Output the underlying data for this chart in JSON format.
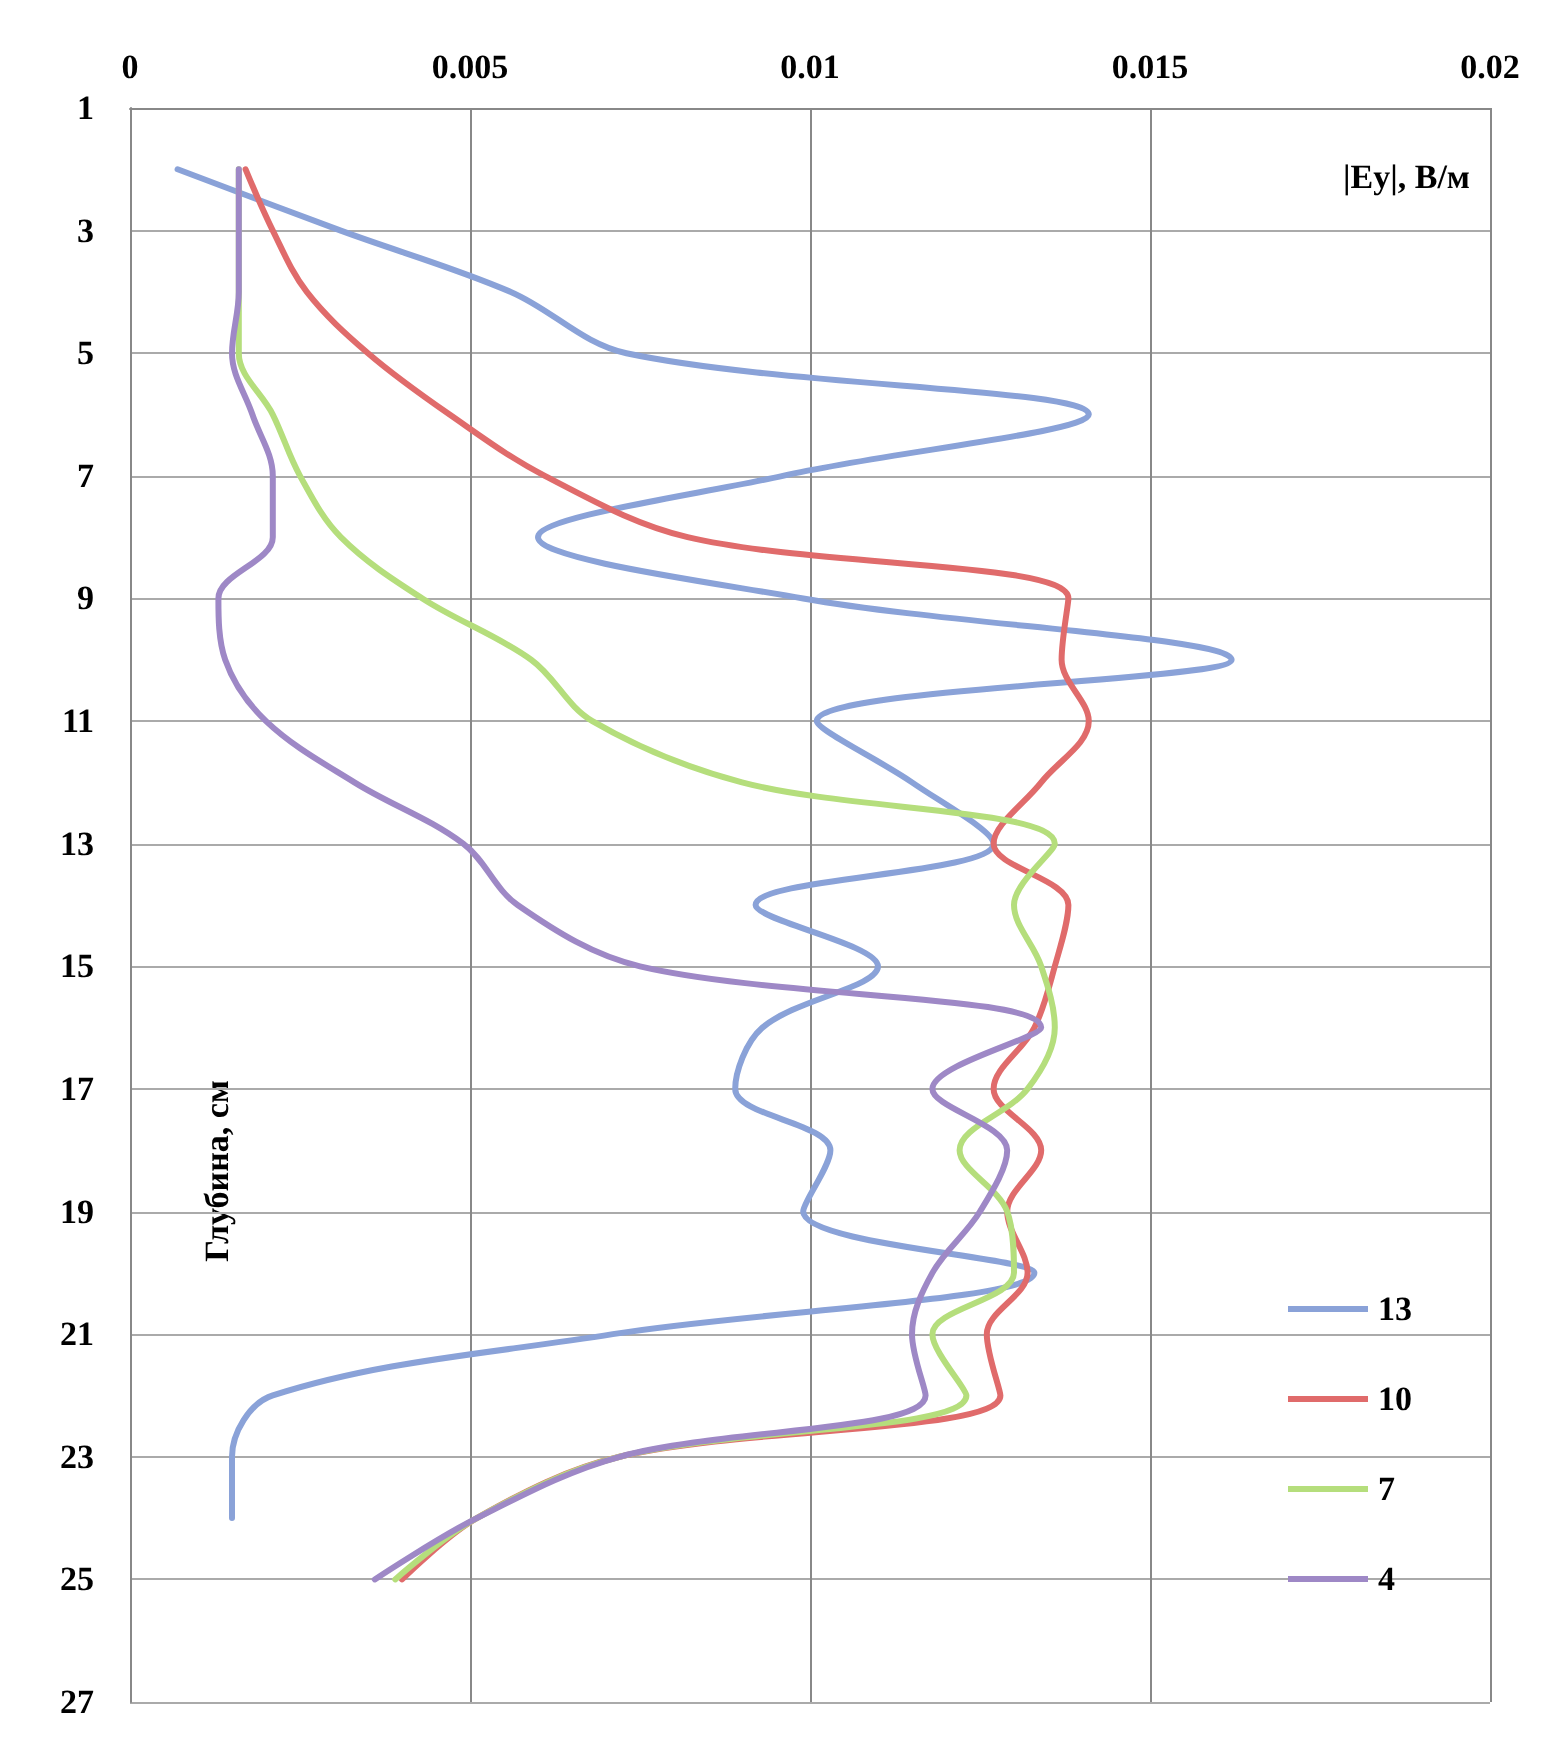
{
  "chart_data": {
    "type": "line",
    "xlabel": "|Ey|, В/м",
    "ylabel": "Глубина, см",
    "xlim": [
      0,
      0.02
    ],
    "xticks": [
      0,
      0.005,
      0.01,
      0.015,
      0.02
    ],
    "ylim": [
      27,
      1
    ],
    "yticks": [
      1,
      3,
      5,
      7,
      9,
      11,
      13,
      15,
      17,
      19,
      21,
      23,
      25,
      27
    ],
    "grid": true,
    "legend": "bottom right",
    "marker": "none",
    "line_style": "solid",
    "series": [
      {
        "name": "13",
        "color": "#8aa2d8",
        "x": [
          0.0007,
          0.0031,
          0.0056,
          0.0073,
          0.0141,
          0.0096,
          0.006,
          0.0099,
          0.0162,
          0.0101,
          0.0115,
          0.0127,
          0.0092,
          0.011,
          0.0093,
          0.0089,
          0.0103,
          0.0099,
          0.0133,
          0.0071,
          0.0021,
          0.0015,
          0.0015
        ],
        "values": [
          2,
          3,
          4,
          5,
          6,
          7,
          8,
          9,
          10,
          11,
          12,
          13,
          14,
          15,
          16,
          17,
          18,
          19,
          20,
          21,
          22,
          23,
          24
        ]
      },
      {
        "name": "10",
        "color": "#e06b6b",
        "x": [
          0.0017,
          0.0021,
          0.0026,
          0.0035,
          0.0047,
          0.0061,
          0.0082,
          0.0138,
          0.0137,
          0.0141,
          0.0134,
          0.0127,
          0.0138,
          0.0136,
          0.0133,
          0.0127,
          0.0134,
          0.0129,
          0.0132,
          0.0126,
          0.0128,
          0.0072,
          0.0051,
          0.004
        ],
        "values": [
          2,
          3,
          4,
          5,
          6,
          7,
          8,
          9,
          10,
          11,
          12,
          13,
          14,
          15,
          16,
          17,
          18,
          19,
          20,
          21,
          22,
          23,
          24,
          25
        ]
      },
      {
        "name": "7",
        "color": "#b5de7c",
        "x": [
          0.0016,
          0.0016,
          0.0016,
          0.0016,
          0.0021,
          0.0025,
          0.0031,
          0.0043,
          0.0059,
          0.0068,
          0.009,
          0.0136,
          0.013,
          0.0134,
          0.0136,
          0.0132,
          0.0122,
          0.0129,
          0.013,
          0.0118,
          0.0123,
          0.0072,
          0.0051,
          0.0039
        ],
        "values": [
          2,
          3,
          4,
          5,
          6,
          7,
          8,
          9,
          10,
          11,
          12,
          13,
          14,
          15,
          16,
          17,
          18,
          19,
          20,
          21,
          22,
          23,
          24,
          25
        ]
      },
      {
        "name": "4",
        "color": "#9e88c6",
        "x": [
          0.0016,
          0.0016,
          0.0016,
          0.0015,
          0.0018,
          0.0021,
          0.0021,
          0.0013,
          0.0014,
          0.002,
          0.0033,
          0.0049,
          0.0057,
          0.0075,
          0.0134,
          0.0118,
          0.0129,
          0.0125,
          0.0118,
          0.0115,
          0.0117,
          0.0072,
          0.0051,
          0.0036
        ],
        "values": [
          2,
          3,
          4,
          5,
          6,
          7,
          8,
          9,
          10,
          11,
          12,
          13,
          14,
          15,
          16,
          17,
          18,
          19,
          20,
          21,
          22,
          23,
          24,
          25
        ]
      }
    ]
  }
}
